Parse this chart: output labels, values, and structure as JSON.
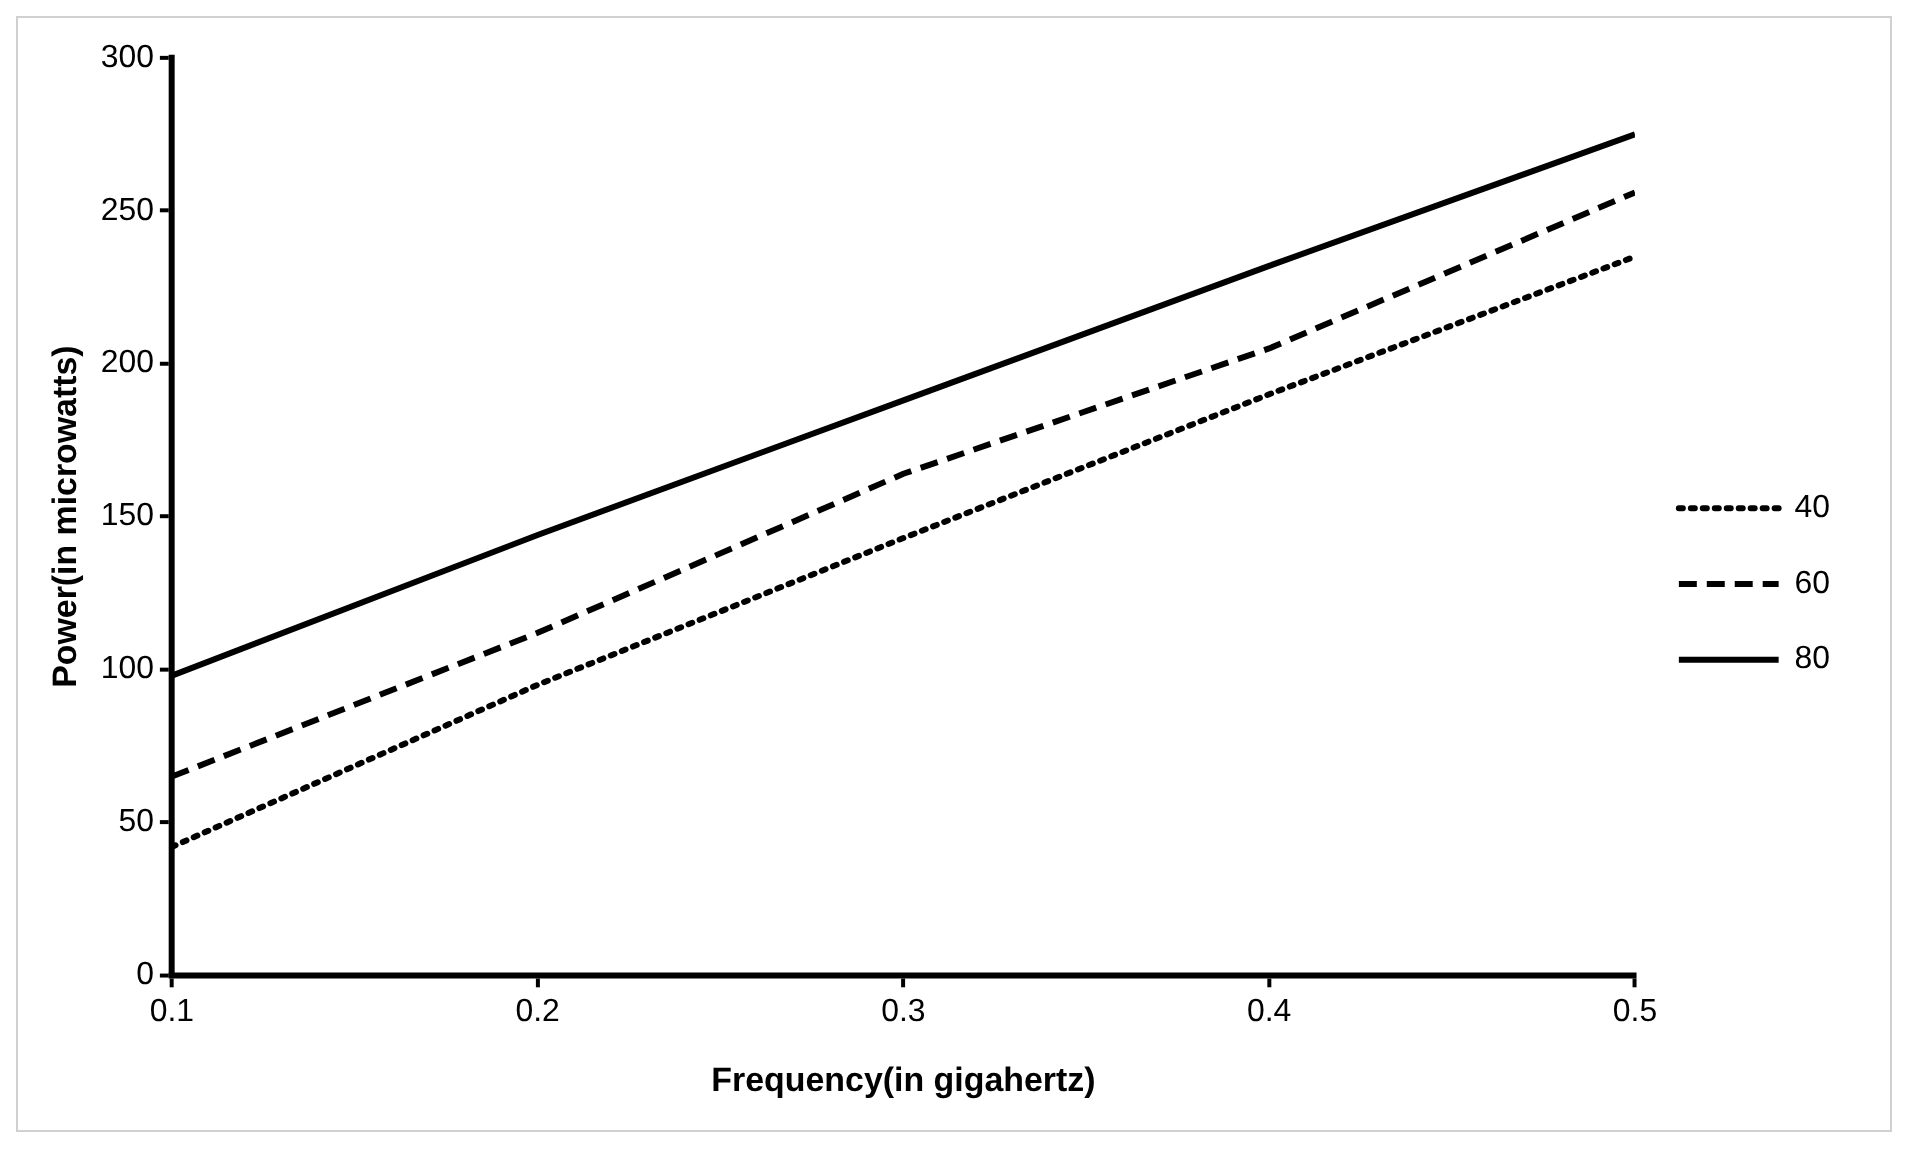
{
  "chart_data": {
    "type": "line",
    "xlabel": "Frequency(in gigahertz)",
    "ylabel": "Power(in microwatts)",
    "x": [
      0.1,
      0.2,
      0.3,
      0.4,
      0.5
    ],
    "series": [
      {
        "name": "40",
        "color": "#000000",
        "line_style": "dotted",
        "values": [
          42,
          95,
          143,
          190,
          235
        ]
      },
      {
        "name": "60",
        "color": "#000000",
        "line_style": "dashed",
        "values": [
          65,
          112,
          164,
          205,
          256
        ]
      },
      {
        "name": "80",
        "color": "#000000",
        "line_style": "solid",
        "values": [
          98,
          144,
          188,
          232,
          275
        ]
      }
    ],
    "xlim": [
      0.1,
      0.5
    ],
    "xticks": [
      0.1,
      0.2,
      0.3,
      0.4,
      0.5
    ],
    "ylim": [
      0,
      300
    ],
    "yticks": [
      0,
      50,
      100,
      150,
      200,
      250,
      300
    ],
    "grid": false,
    "legend": "right",
    "marker": "none"
  }
}
